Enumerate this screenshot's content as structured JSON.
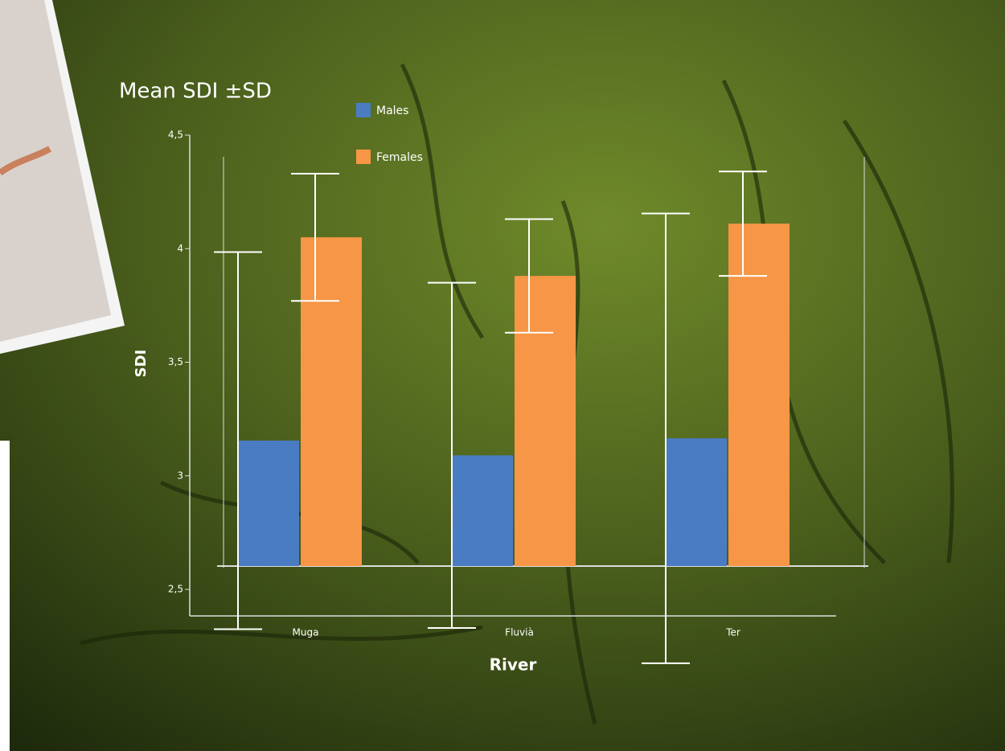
{
  "chart_data": {
    "type": "bar",
    "title": "Mean SDI ±SD",
    "categories": [
      "Muga",
      "Fluvià",
      "Ter"
    ],
    "series": [
      {
        "name": "Males",
        "color": "#4a7cc4",
        "values": [
          3.155,
          3.09,
          3.165
        ],
        "errors": [
          0.83,
          0.76,
          0.99
        ]
      },
      {
        "name": "Females",
        "color": "#f79646",
        "values": [
          4.05,
          3.88,
          4.11
        ],
        "errors": [
          0.28,
          0.25,
          0.23
        ]
      }
    ],
    "ylim": [
      2.5,
      4.5
    ],
    "yticks": [
      {
        "value": 2.5,
        "label": "2,5"
      },
      3,
      {
        "value": 3.5,
        "label": "3,5"
      },
      4,
      {
        "value": 4.5,
        "label": "4,5"
      }
    ],
    "xlabel": "River",
    "ylabel": "SDI"
  }
}
